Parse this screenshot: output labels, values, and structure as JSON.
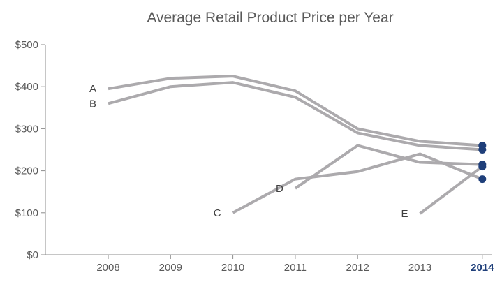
{
  "chart_data": {
    "type": "line",
    "title": "Average Retail Product Price per Year",
    "xlabel": "",
    "ylabel": "",
    "x": [
      2008,
      2009,
      2010,
      2011,
      2012,
      2013,
      2014
    ],
    "x_tick_labels": [
      "2008",
      "2009",
      "2010",
      "2011",
      "2012",
      "2013",
      "2014"
    ],
    "highlight_x_label": "2014",
    "y_tick_labels": [
      "$0",
      "$100",
      "$200",
      "$300",
      "$400",
      "$500"
    ],
    "y_ticks": [
      0,
      100,
      200,
      300,
      400,
      500
    ],
    "ylim": [
      0,
      500
    ],
    "grid": false,
    "line_color": "#acaaad",
    "highlight_color": "#1f3f7a",
    "series": [
      {
        "name": "A",
        "x": [
          2008,
          2009,
          2010,
          2011,
          2012,
          2013,
          2014
        ],
        "values": [
          395,
          420,
          425,
          390,
          300,
          270,
          260
        ]
      },
      {
        "name": "B",
        "x": [
          2008,
          2009,
          2010,
          2011,
          2012,
          2013,
          2014
        ],
        "values": [
          360,
          400,
          410,
          375,
          290,
          260,
          250
        ]
      },
      {
        "name": "C",
        "x": [
          2010,
          2011,
          2012,
          2013,
          2014
        ],
        "values": [
          100,
          180,
          198,
          240,
          180
        ]
      },
      {
        "name": "D",
        "x": [
          2011,
          2012,
          2013,
          2014
        ],
        "values": [
          158,
          260,
          220,
          215
        ]
      },
      {
        "name": "E",
        "x": [
          2013,
          2014
        ],
        "values": [
          98,
          210
        ]
      }
    ]
  }
}
